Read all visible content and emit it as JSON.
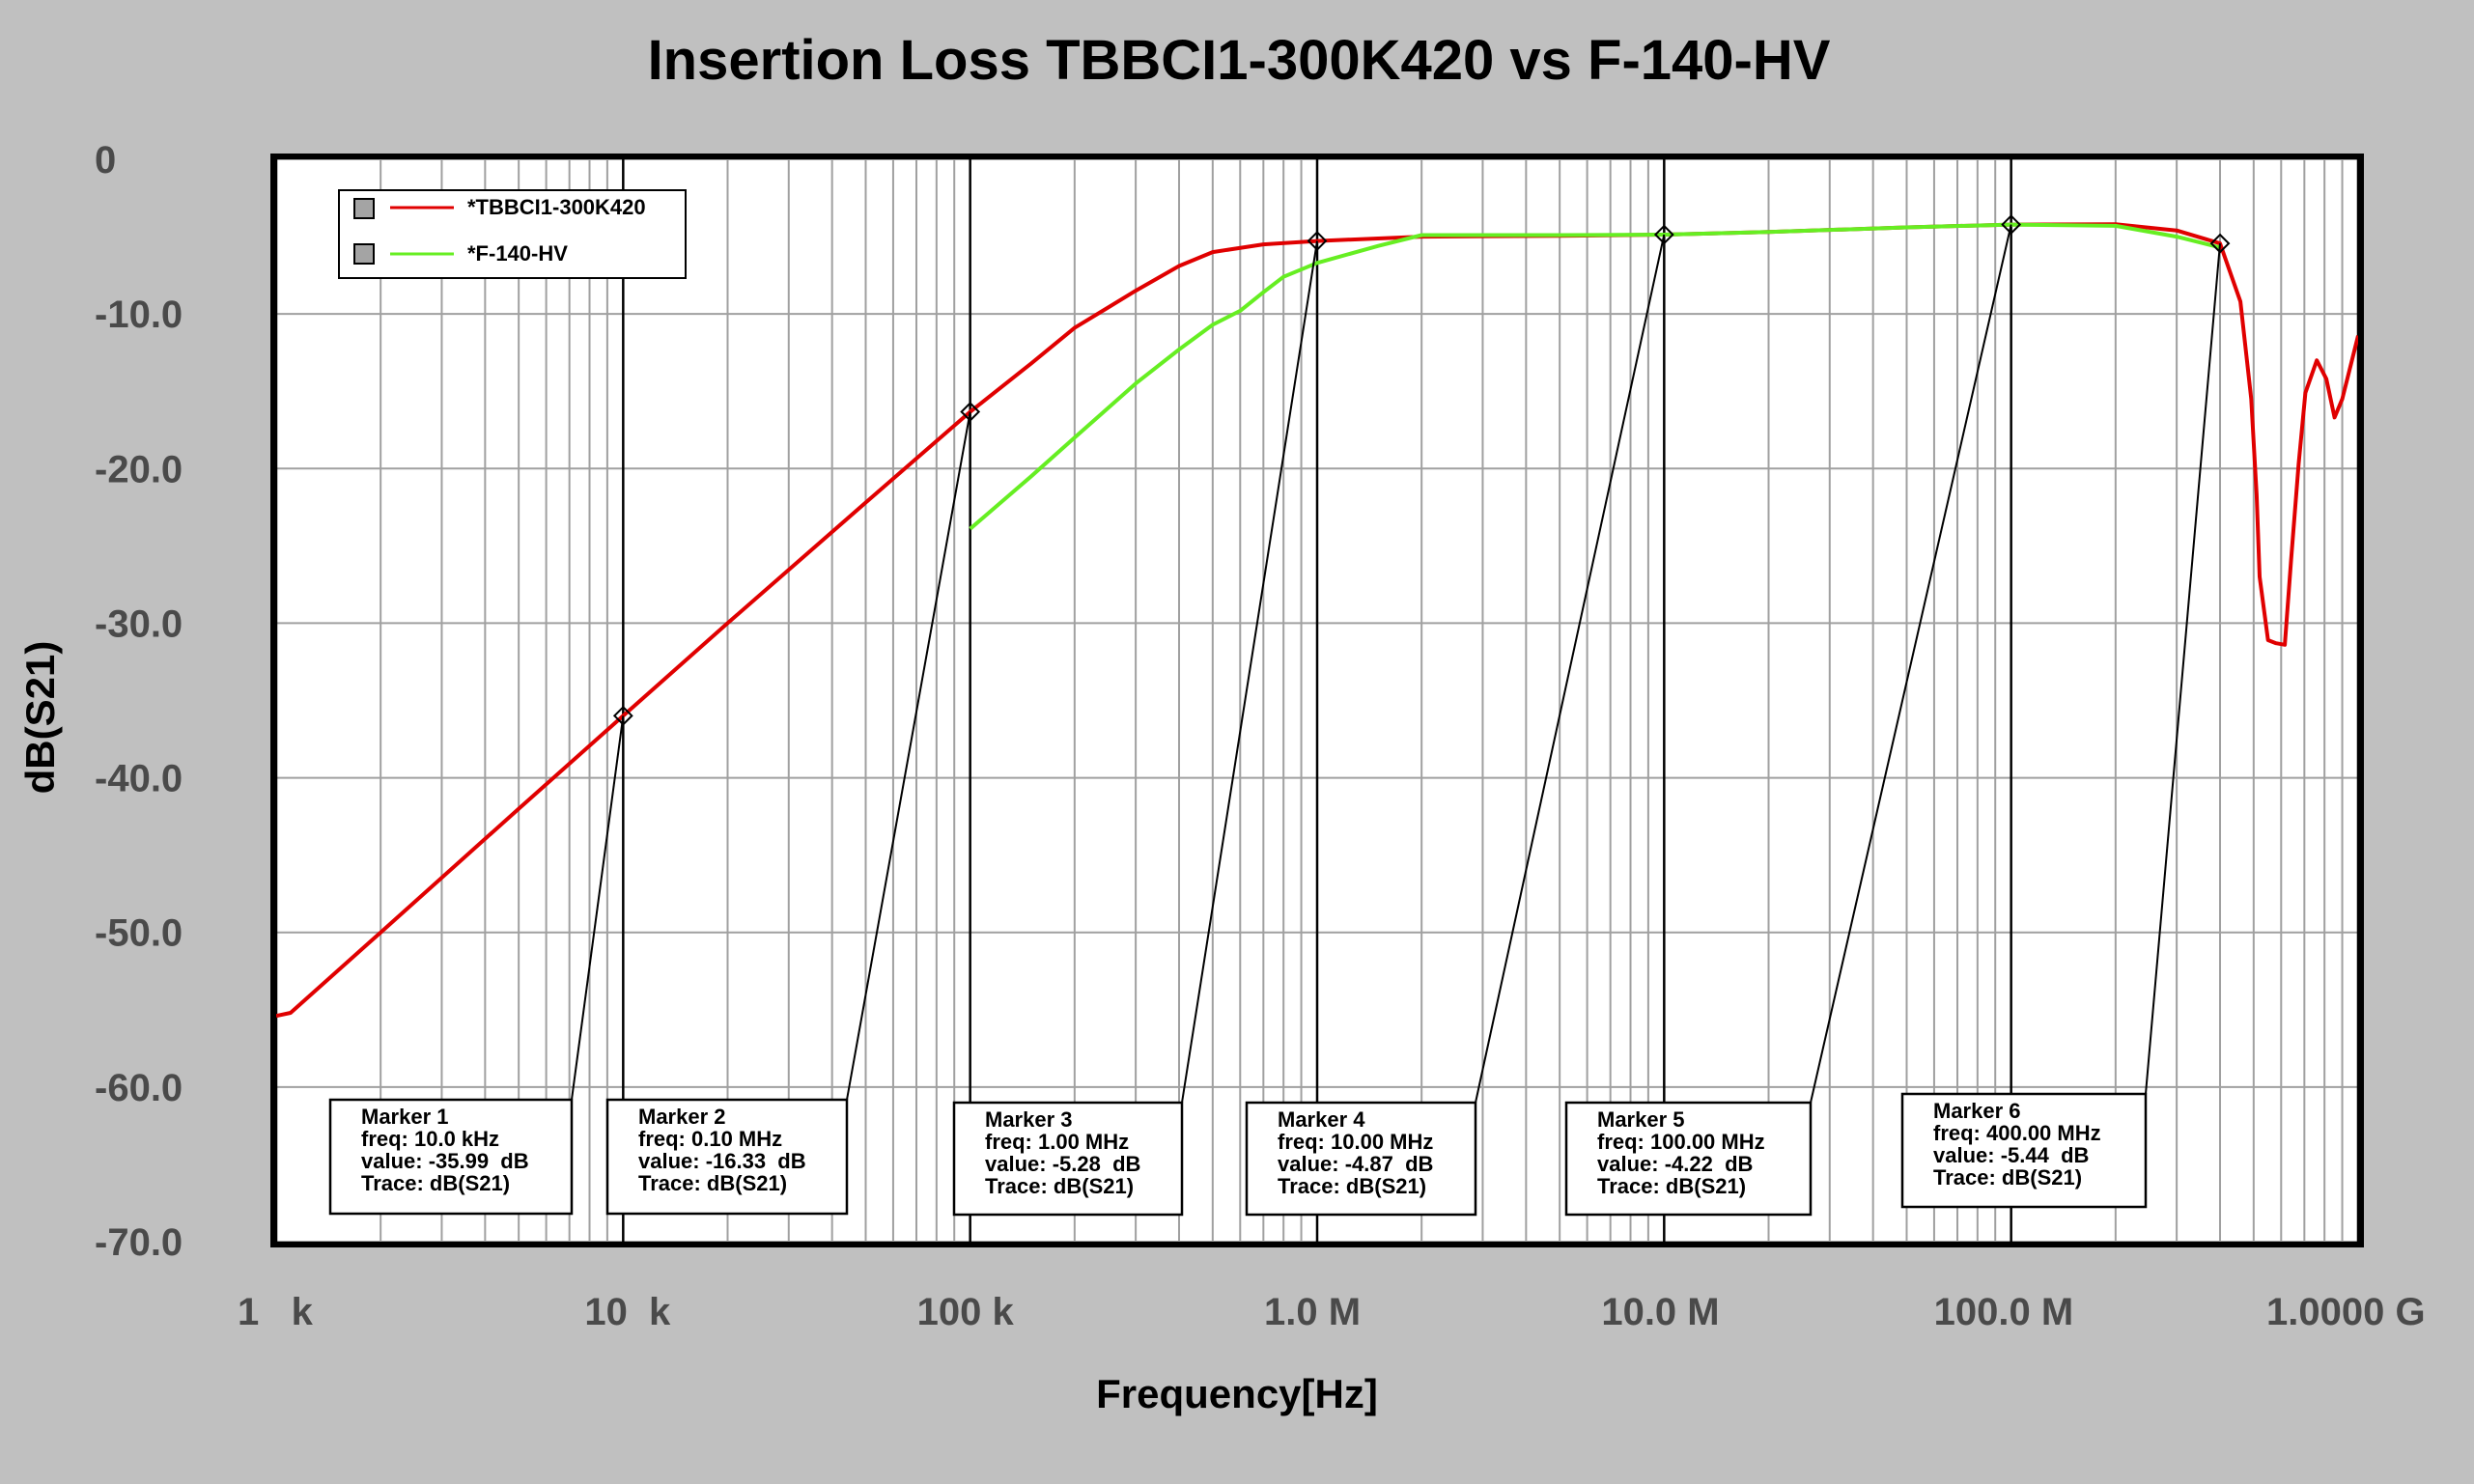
{
  "chart_data": {
    "type": "line",
    "title": "Insertion Loss TBBCI1-300K420 vs F-140-HV",
    "xlabel": "Frequency[Hz]",
    "ylabel": "dB(S21)",
    "xscale": "log",
    "xlim": [
      1000,
      1000000000
    ],
    "ylim": [
      -70,
      0
    ],
    "grid": true,
    "legend_position": "top-left",
    "x_ticks": [
      {
        "value": 1000,
        "label": "1   k"
      },
      {
        "value": 10000,
        "label": "10  k"
      },
      {
        "value": 100000,
        "label": "100 k"
      },
      {
        "value": 1000000,
        "label": "1.0 M"
      },
      {
        "value": 10000000,
        "label": "10.0 M"
      },
      {
        "value": 100000000,
        "label": "100.0 M"
      },
      {
        "value": 1000000000,
        "label": "1.0000 G"
      }
    ],
    "y_ticks": [
      {
        "value": 0,
        "label": "0"
      },
      {
        "value": -10,
        "label": "-10.0"
      },
      {
        "value": -20,
        "label": "-20.0"
      },
      {
        "value": -30,
        "label": "-30.0"
      },
      {
        "value": -40,
        "label": "-40.0"
      },
      {
        "value": -50,
        "label": "-50.0"
      },
      {
        "value": -60,
        "label": "-60.0"
      },
      {
        "value": -70,
        "label": "-70.0"
      }
    ],
    "series": [
      {
        "name": "*TBBCI1-300K420",
        "color": "#e00000",
        "x": [
          1000,
          1100,
          2000,
          5000,
          10000,
          20000,
          50000,
          100000,
          150000,
          200000,
          300000,
          400000,
          500000,
          700000,
          1000000,
          2000000,
          5000000,
          10000000,
          20000000,
          50000000,
          100000000,
          200000000,
          300000000,
          400000000,
          458000000,
          492000000,
          510000000,
          520000000,
          550000000,
          580000000,
          615000000,
          641000000,
          674000000,
          705000000,
          760000000,
          810000000,
          855000000,
          900000000,
          950000000,
          1000000000
        ],
        "values": [
          -55.4,
          -55.2,
          -50.0,
          -42.0,
          -35.99,
          -30.0,
          -22.2,
          -16.33,
          -13.2,
          -10.9,
          -8.5,
          -6.9,
          -6.0,
          -5.5,
          -5.28,
          -5.0,
          -4.95,
          -4.87,
          -4.7,
          -4.4,
          -4.22,
          -4.2,
          -4.6,
          -5.44,
          -9.2,
          -15.5,
          -21.7,
          -27.0,
          -31.1,
          -31.3,
          -31.4,
          -25.9,
          -19.7,
          -15.1,
          -13.0,
          -14.2,
          -16.7,
          -15.5,
          -13.4,
          -11.4
        ]
      },
      {
        "name": "*F-140-HV",
        "color": "#66ee22",
        "x": [
          100000,
          150000,
          200000,
          300000,
          400000,
          500000,
          600000,
          700000,
          800000,
          1000000,
          1500000,
          2000000,
          5000000,
          10000000,
          20000000,
          50000000,
          100000000,
          200000000,
          300000000,
          400000000
        ],
        "values": [
          -23.9,
          -20.5,
          -18.0,
          -14.5,
          -12.3,
          -10.7,
          -9.8,
          -8.6,
          -7.6,
          -6.7,
          -5.6,
          -4.9,
          -4.9,
          -4.87,
          -4.7,
          -4.4,
          -4.22,
          -4.3,
          -5.0,
          -5.7
        ]
      }
    ],
    "markers": [
      {
        "title": "Marker 1",
        "freq": 10000,
        "value": -35.99,
        "freq_text": "freq: 10.0 kHz",
        "value_text": "value: -35.99  dB",
        "trace_text": "Trace: dB(S21)"
      },
      {
        "title": "Marker 2",
        "freq": 100000,
        "value": -16.33,
        "freq_text": "freq: 0.10 MHz",
        "value_text": "value: -16.33  dB",
        "trace_text": "Trace: dB(S21)"
      },
      {
        "title": "Marker 3",
        "freq": 1000000,
        "value": -5.28,
        "freq_text": "freq: 1.00 MHz",
        "value_text": "value: -5.28  dB",
        "trace_text": "Trace: dB(S21)"
      },
      {
        "title": "Marker 4",
        "freq": 10000000,
        "value": -4.87,
        "freq_text": "freq: 10.00 MHz",
        "value_text": "value: -4.87  dB",
        "trace_text": "Trace: dB(S21)"
      },
      {
        "title": "Marker 5",
        "freq": 100000000,
        "value": -4.22,
        "freq_text": "freq: 100.00 MHz",
        "value_text": "value: -4.22  dB",
        "trace_text": "Trace: dB(S21)"
      },
      {
        "title": "Marker 6",
        "freq": 400000000,
        "value": -5.44,
        "freq_text": "freq: 400.00 MHz",
        "value_text": "value: -5.44  dB",
        "trace_text": "Trace: dB(S21)"
      }
    ]
  }
}
